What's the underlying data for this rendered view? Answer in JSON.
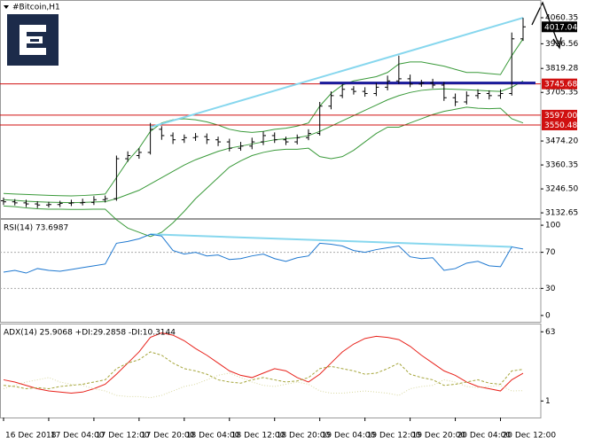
{
  "chart_data": [
    {
      "type": "ohlc",
      "title": "#Bitcoin,H1",
      "categories": [
        "16 Dec 2018",
        null,
        null,
        null,
        "17 Dec 04:00",
        null,
        null,
        null,
        "17 Dec 12:00",
        null,
        null,
        null,
        "17 Dec 20:00",
        null,
        null,
        null,
        "18 Dec 04:00",
        null,
        null,
        null,
        "18 Dec 12:00",
        null,
        null,
        null,
        "18 Dec 20:00",
        null,
        null,
        null,
        "19 Dec 04:00",
        null,
        null,
        null,
        "19 Dec 12:00",
        null,
        null,
        null,
        "19 Dec 20:00",
        null,
        null,
        null,
        "20 Dec 04:00",
        null,
        null,
        null,
        "20 Dec 12:00",
        null,
        null
      ],
      "open": [
        3190,
        3185,
        3180,
        3175,
        3170,
        3172,
        3178,
        3180,
        3182,
        3195,
        3200,
        3390,
        3405,
        3420,
        3530,
        3500,
        3480,
        3490,
        3495,
        3480,
        3470,
        3440,
        3450,
        3470,
        3500,
        3480,
        3470,
        3490,
        3510,
        3640,
        3690,
        3720,
        3710,
        3700,
        3730,
        3760,
        3770,
        3745,
        3750,
        3740,
        3680,
        3660,
        3690,
        3700,
        3690,
        3700,
        3960
      ],
      "high": [
        3205,
        3198,
        3195,
        3188,
        3185,
        3190,
        3195,
        3200,
        3212,
        3215,
        3405,
        3425,
        3440,
        3560,
        3545,
        3515,
        3505,
        3512,
        3510,
        3495,
        3485,
        3470,
        3490,
        3520,
        3515,
        3495,
        3505,
        3530,
        3660,
        3710,
        3745,
        3735,
        3730,
        3750,
        3785,
        3880,
        3790,
        3765,
        3770,
        3755,
        3700,
        3710,
        3720,
        3715,
        3720,
        3990,
        4060
      ],
      "low": [
        3170,
        3168,
        3160,
        3155,
        3158,
        3160,
        3165,
        3168,
        3170,
        3182,
        3190,
        3375,
        3390,
        3410,
        3480,
        3460,
        3465,
        3475,
        3460,
        3450,
        3425,
        3428,
        3435,
        3455,
        3465,
        3455,
        3458,
        3478,
        3500,
        3625,
        3678,
        3695,
        3685,
        3688,
        3715,
        3745,
        3730,
        3732,
        3725,
        3665,
        3640,
        3648,
        3675,
        3672,
        3675,
        3690,
        3950
      ],
      "close": [
        3185,
        3180,
        3175,
        3170,
        3172,
        3178,
        3180,
        3182,
        3195,
        3200,
        3390,
        3405,
        3420,
        3530,
        3500,
        3480,
        3490,
        3495,
        3480,
        3470,
        3440,
        3450,
        3470,
        3500,
        3480,
        3470,
        3490,
        3510,
        3640,
        3690,
        3720,
        3710,
        3700,
        3730,
        3760,
        3770,
        3745,
        3750,
        3740,
        3680,
        3660,
        3690,
        3700,
        3690,
        3700,
        3960,
        4017.04
      ],
      "bar_color": "#000000",
      "bands": [
        {
          "color": "#3a9a3a",
          "values": [
            3225,
            3222,
            3220,
            3218,
            3216,
            3214,
            3213,
            3215,
            3218,
            3222,
            3300,
            3380,
            3440,
            3520,
            3560,
            3575,
            3580,
            3575,
            3565,
            3550,
            3530,
            3520,
            3515,
            3520,
            3530,
            3535,
            3545,
            3560,
            3640,
            3700,
            3740,
            3760,
            3770,
            3780,
            3800,
            3840,
            3850,
            3850,
            3840,
            3830,
            3815,
            3800,
            3800,
            3795,
            3790,
            3880,
            3960
          ]
        },
        {
          "color": "#3a9a3a",
          "values": [
            3195,
            3192,
            3188,
            3185,
            3183,
            3182,
            3181,
            3182,
            3184,
            3186,
            3200,
            3220,
            3240,
            3270,
            3300,
            3330,
            3360,
            3385,
            3405,
            3425,
            3440,
            3450,
            3460,
            3470,
            3480,
            3485,
            3490,
            3500,
            3520,
            3545,
            3570,
            3595,
            3620,
            3645,
            3670,
            3690,
            3705,
            3715,
            3720,
            3722,
            3720,
            3718,
            3715,
            3712,
            3710,
            3730,
            3760
          ]
        },
        {
          "color": "#3a9a3a",
          "values": [
            3165,
            3162,
            3156,
            3152,
            3150,
            3150,
            3149,
            3149,
            3150,
            3150,
            3100,
            3060,
            3040,
            3020,
            3040,
            3085,
            3140,
            3200,
            3250,
            3300,
            3350,
            3380,
            3405,
            3420,
            3430,
            3435,
            3435,
            3440,
            3400,
            3390,
            3400,
            3430,
            3470,
            3510,
            3540,
            3540,
            3560,
            3580,
            3600,
            3615,
            3625,
            3635,
            3630,
            3628,
            3630,
            3580,
            3560
          ]
        }
      ],
      "ylim": [
        3112,
        4132
      ],
      "yticks": [
        4060.35,
        3936.56,
        3819.28,
        3705.35,
        {
          "value": 3474.2,
          "label": "3474.20"
        },
        3360.35,
        {
          "value": 3246.5,
          "label": "3246.50"
        },
        3132.65
      ],
      "levels": [
        {
          "value": 3745.68,
          "label": "3745.68",
          "color": "#d01010"
        },
        {
          "value": 3597,
          "label": "3597.00",
          "color": "#d01010"
        },
        {
          "value": 3550.48,
          "label": "3550.48",
          "color": "#d01010"
        }
      ],
      "last_price": 4017.04,
      "trend_line": {
        "x": [
          13,
          46
        ],
        "y": [
          3540,
          4060
        ],
        "color": "#87d7ee"
      },
      "support_line": {
        "x": [
          28,
          46
        ],
        "y": [
          3750,
          3750
        ],
        "color": "#1a1a9a"
      }
    },
    {
      "type": "line",
      "title": "RSI(14) 73.6987",
      "series": [
        {
          "color": "#1e78d0",
          "values": [
            48,
            50,
            47,
            52,
            50,
            49,
            51,
            53,
            55,
            57,
            80,
            82,
            85,
            90,
            88,
            72,
            68,
            70,
            66,
            67,
            62,
            63,
            66,
            68,
            63,
            60,
            64,
            66,
            80,
            79,
            77,
            72,
            70,
            73,
            75,
            77,
            65,
            63,
            64,
            50,
            52,
            58,
            60,
            55,
            54,
            76,
            73.7
          ]
        }
      ],
      "ylim": [
        -6,
        104
      ],
      "yticks": [
        100,
        70,
        30,
        0
      ],
      "levels": [
        70,
        30
      ],
      "trend_line": {
        "x": [
          13,
          45
        ],
        "y": [
          90,
          76
        ],
        "color": "#87d7ee"
      }
    },
    {
      "type": "line",
      "title": "ADX(14) 25.9068 +DI:29.2858 -DI:10.3144",
      "series": [
        {
          "color": "#e8221b",
          "dash": "none",
          "values": [
            20,
            18,
            15,
            12,
            10,
            9,
            8,
            9,
            12,
            16,
            25,
            35,
            45,
            58,
            62,
            60,
            55,
            48,
            42,
            35,
            28,
            24,
            22,
            26,
            30,
            28,
            22,
            18,
            25,
            35,
            45,
            52,
            57,
            59,
            58,
            56,
            50,
            42,
            35,
            28,
            24,
            18,
            14,
            12,
            10,
            20,
            25.9
          ]
        },
        {
          "color": "#a5a53a",
          "dash": "3,2",
          "values": [
            15,
            14,
            12,
            13,
            12,
            14,
            15,
            16,
            18,
            20,
            30,
            35,
            38,
            45,
            42,
            35,
            30,
            28,
            25,
            20,
            18,
            17,
            20,
            22,
            20,
            18,
            19,
            22,
            30,
            32,
            30,
            28,
            25,
            26,
            30,
            35,
            25,
            22,
            20,
            15,
            16,
            18,
            20,
            17,
            16,
            28,
            29.3
          ]
        },
        {
          "color": "#d8d8a0",
          "dash": "1,2",
          "values": [
            12,
            15,
            18,
            20,
            22,
            18,
            16,
            15,
            12,
            10,
            6,
            5,
            5,
            4,
            6,
            10,
            14,
            16,
            20,
            24,
            26,
            22,
            18,
            15,
            14,
            16,
            18,
            16,
            10,
            8,
            8,
            9,
            10,
            9,
            8,
            6,
            12,
            14,
            15,
            20,
            18,
            14,
            13,
            14,
            15,
            10,
            10.3
          ]
        }
      ],
      "ylim": [
        -13,
        68
      ],
      "yticks": [
        63,
        1
      ]
    }
  ]
}
